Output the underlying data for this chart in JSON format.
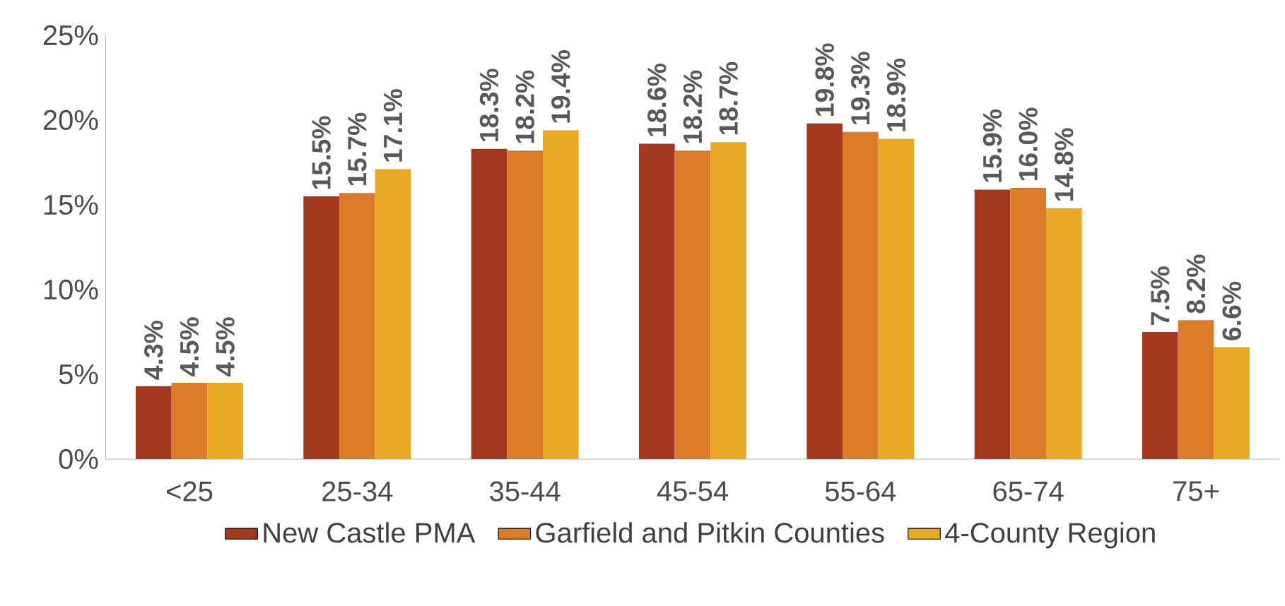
{
  "chart_data": {
    "type": "bar",
    "categories": [
      "<25",
      "25-34",
      "35-44",
      "45-54",
      "55-64",
      "65-74",
      "75+"
    ],
    "series": [
      {
        "name": "New Castle PMA",
        "color": "#a3381f",
        "values": [
          4.3,
          15.5,
          18.3,
          18.6,
          19.8,
          15.9,
          7.5
        ],
        "value_labels": [
          "4.3%",
          "15.5%",
          "18.3%",
          "18.6%",
          "19.8%",
          "15.9%",
          "7.5%"
        ]
      },
      {
        "name": "Garfield and Pitkin Counties",
        "color": "#d97b29",
        "values": [
          4.5,
          15.7,
          18.2,
          18.2,
          19.3,
          16.0,
          8.2
        ],
        "value_labels": [
          "4.5%",
          "15.7%",
          "18.2%",
          "18.2%",
          "19.3%",
          "16.0%",
          "8.2%"
        ]
      },
      {
        "name": "4-County Region",
        "color": "#e9a824",
        "values": [
          4.5,
          17.1,
          19.4,
          18.7,
          18.9,
          14.8,
          6.6
        ],
        "value_labels": [
          "4.5%",
          "17.1%",
          "19.4%",
          "18.7%",
          "18.9%",
          "14.8%",
          "6.6%"
        ]
      }
    ],
    "ylim": [
      0,
      25
    ],
    "yticks": [
      {
        "value": 0,
        "label": "0%"
      },
      {
        "value": 5,
        "label": "5%"
      },
      {
        "value": 10,
        "label": "10%"
      },
      {
        "value": 15,
        "label": "15%"
      },
      {
        "value": 20,
        "label": "20%"
      },
      {
        "value": 25,
        "label": "25%"
      }
    ],
    "grid": false,
    "legend": "bottom"
  }
}
